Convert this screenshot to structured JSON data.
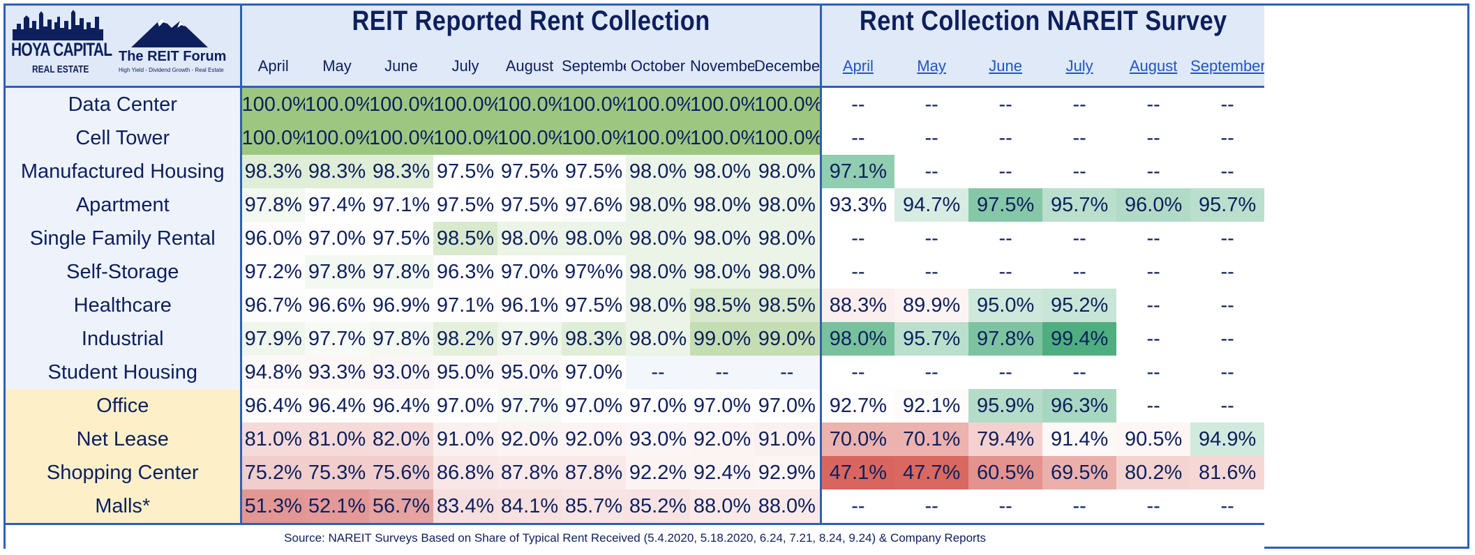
{
  "brand": {
    "hoya_name": "HOYA CAPITAL",
    "hoya_sub": "REAL ESTATE",
    "forum_name": "The REIT Forum",
    "forum_tagline": "High Yield - Dividend Growth - Real Estate",
    "colors": {
      "navy": "#0d1f5c",
      "border": "#2e5fb8",
      "header_bg": "#dfe9f7",
      "label_bg_blue": "#eef3fb",
      "label_bg_yellow": "#fdf0c9"
    }
  },
  "chart_data": {
    "type": "table",
    "tables": [
      {
        "title": "REIT Reported Rent Collection",
        "columns": [
          "April",
          "May",
          "June",
          "July",
          "August",
          "September",
          "October",
          "November",
          "December"
        ]
      },
      {
        "title": "Rent Collection NAREIT Survey",
        "columns": [
          "April",
          "May",
          "June",
          "July",
          "August",
          "September"
        ]
      }
    ],
    "rows": [
      {
        "label": "Data Center",
        "group": "blue",
        "reit": [
          "100.0%",
          "100.0%",
          "100.0%",
          "100.0%",
          "100.0%",
          "100.0%",
          "100.0%",
          "100.0%",
          "100.0%"
        ],
        "nareit": [
          "--",
          "--",
          "--",
          "--",
          "--",
          "--"
        ]
      },
      {
        "label": "Cell Tower",
        "group": "blue",
        "reit": [
          "100.0%",
          "100.0%",
          "100.0%",
          "100.0%",
          "100.0%",
          "100.0%",
          "100.0%",
          "100.0%",
          "100.0%"
        ],
        "nareit": [
          "--",
          "--",
          "--",
          "--",
          "--",
          "--"
        ]
      },
      {
        "label": "Manufactured Housing",
        "group": "blue",
        "reit": [
          "98.3%",
          "98.3%",
          "98.3%",
          "97.5%",
          "97.5%",
          "97.5%",
          "98.0%",
          "98.0%",
          "98.0%"
        ],
        "nareit": [
          "97.1%",
          "--",
          "--",
          "--",
          "--",
          "--"
        ]
      },
      {
        "label": "Apartment",
        "group": "blue",
        "reit": [
          "97.8%",
          "97.4%",
          "97.1%",
          "97.5%",
          "97.5%",
          "97.6%",
          "98.0%",
          "98.0%",
          "98.0%"
        ],
        "nareit": [
          "93.3%",
          "94.7%",
          "97.5%",
          "95.7%",
          "96.0%",
          "95.7%"
        ]
      },
      {
        "label": "Single Family Rental",
        "group": "blue",
        "reit": [
          "96.0%",
          "97.0%",
          "97.5%",
          "98.5%",
          "98.0%",
          "98.0%",
          "98.0%",
          "98.0%",
          "98.0%"
        ],
        "nareit": [
          "--",
          "--",
          "--",
          "--",
          "--",
          "--"
        ]
      },
      {
        "label": "Self-Storage",
        "group": "blue",
        "reit": [
          "97.2%",
          "97.8%",
          "97.8%",
          "96.3%",
          "97.0%",
          "97%%",
          "98.0%",
          "98.0%",
          "98.0%"
        ],
        "nareit": [
          "--",
          "--",
          "--",
          "--",
          "--",
          "--"
        ]
      },
      {
        "label": "Healthcare",
        "group": "blue",
        "reit": [
          "96.7%",
          "96.6%",
          "96.9%",
          "97.1%",
          "96.1%",
          "97.5%",
          "98.0%",
          "98.5%",
          "98.5%"
        ],
        "nareit": [
          "88.3%",
          "89.9%",
          "95.0%",
          "95.2%",
          "--",
          "--"
        ]
      },
      {
        "label": "Industrial",
        "group": "blue",
        "reit": [
          "97.9%",
          "97.7%",
          "97.8%",
          "98.2%",
          "97.9%",
          "98.3%",
          "98.0%",
          "99.0%",
          "99.0%"
        ],
        "nareit": [
          "98.0%",
          "95.7%",
          "97.8%",
          "99.4%",
          "--",
          "--"
        ]
      },
      {
        "label": "Student Housing",
        "group": "blue",
        "reit": [
          "94.8%",
          "93.3%",
          "93.0%",
          "95.0%",
          "95.0%",
          "97.0%",
          "--",
          "--",
          "--"
        ],
        "nareit": [
          "--",
          "--",
          "--",
          "--",
          "--",
          "--"
        ]
      },
      {
        "label": "Office",
        "group": "yellow",
        "reit": [
          "96.4%",
          "96.4%",
          "96.4%",
          "97.0%",
          "97.7%",
          "97.0%",
          "97.0%",
          "97.0%",
          "97.0%"
        ],
        "nareit": [
          "92.7%",
          "92.1%",
          "95.9%",
          "96.3%",
          "--",
          "--"
        ]
      },
      {
        "label": "Net Lease",
        "group": "yellow",
        "reit": [
          "81.0%",
          "81.0%",
          "82.0%",
          "91.0%",
          "92.0%",
          "92.0%",
          "93.0%",
          "92.0%",
          "91.0%"
        ],
        "nareit": [
          "70.0%",
          "70.1%",
          "79.4%",
          "91.4%",
          "90.5%",
          "94.9%"
        ]
      },
      {
        "label": "Shopping Center",
        "group": "yellow",
        "reit": [
          "75.2%",
          "75.3%",
          "75.6%",
          "86.8%",
          "87.8%",
          "87.8%",
          "92.2%",
          "92.4%",
          "92.9%"
        ],
        "nareit": [
          "47.1%",
          "47.7%",
          "60.5%",
          "69.5%",
          "80.2%",
          "81.6%"
        ]
      },
      {
        "label": "Malls*",
        "group": "yellow",
        "reit": [
          "51.3%",
          "52.1%",
          "56.7%",
          "83.4%",
          "84.1%",
          "85.7%",
          "85.2%",
          "88.0%",
          "88.0%"
        ],
        "nareit": [
          "--",
          "--",
          "--",
          "--",
          "--",
          "--"
        ]
      }
    ],
    "color_scale": {
      "reit": {
        "high": "#9dc781",
        "mid": "#ffffff",
        "low": "#e29795"
      },
      "nareit": {
        "high": "#4fae80",
        "mid": "#ffffff",
        "low": "#d9665e"
      }
    },
    "source": "Source: NAREIT Surveys Based on Share of Typical Rent Received (5.4.2020, 5.18.2020, 6.24, 7.21, 8.24, 9.24) & Company Reports"
  }
}
